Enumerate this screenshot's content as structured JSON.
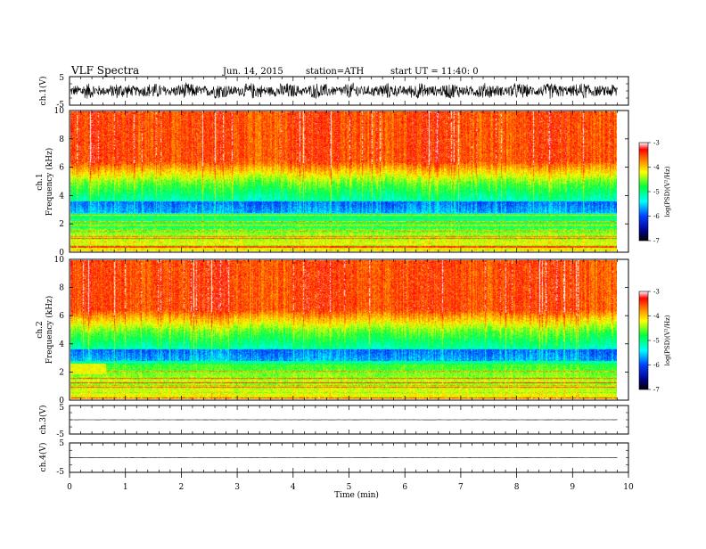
{
  "header": {
    "title": "VLF  Spectra",
    "date": "Jun. 14, 2015",
    "station": "station=ATH",
    "start": "start  UT  =   11:40: 0"
  },
  "chart_data": [
    {
      "type": "line",
      "ylabel": "ch.1(V)",
      "ylim": [
        -5,
        5
      ],
      "yticks": [
        "5",
        "-5"
      ],
      "trace": "noisy waveform, amplitude roughly ±2 V",
      "x_range_min": [
        0,
        9.8
      ]
    },
    {
      "type": "heatmap",
      "ylabel_line1": "ch.1",
      "ylabel_line2": "Frequency  (kHz)",
      "ylim": [
        0,
        10
      ],
      "yticks": [
        "0",
        "2",
        "4",
        "6",
        "8",
        "10"
      ],
      "colorbar_label": "log(PSD)(V²/Hz)",
      "colorbar_ticks": [
        "-3",
        "-4",
        "-5",
        "-6",
        "-7"
      ],
      "colorbar_range": [
        -7,
        -3
      ]
    },
    {
      "type": "heatmap",
      "ylabel_line1": "ch.2",
      "ylabel_line2": "Frequency  (kHz)",
      "ylim": [
        0,
        10
      ],
      "yticks": [
        "0",
        "2",
        "4",
        "6",
        "8",
        "10"
      ],
      "colorbar_label": "log(PSD)(V²/Hz)",
      "colorbar_ticks": [
        "-3",
        "-4",
        "-5",
        "-6",
        "-7"
      ],
      "colorbar_range": [
        -7,
        -3
      ]
    },
    {
      "type": "line",
      "ylabel": "ch.3(V)",
      "ylim": [
        -5,
        5
      ],
      "yticks": [
        "5",
        "-5"
      ],
      "trace": "flat line near 0 V"
    },
    {
      "type": "line",
      "ylabel": "ch.4(V)",
      "ylim": [
        -5,
        5
      ],
      "yticks": [
        "5",
        "-5"
      ],
      "trace": "flat line near 0 V"
    }
  ],
  "xaxis": {
    "label": "Time  (min)",
    "ticks": [
      "0",
      "1",
      "2",
      "3",
      "4",
      "5",
      "6",
      "7",
      "8",
      "9",
      "10"
    ],
    "xlim": [
      0,
      10
    ]
  }
}
